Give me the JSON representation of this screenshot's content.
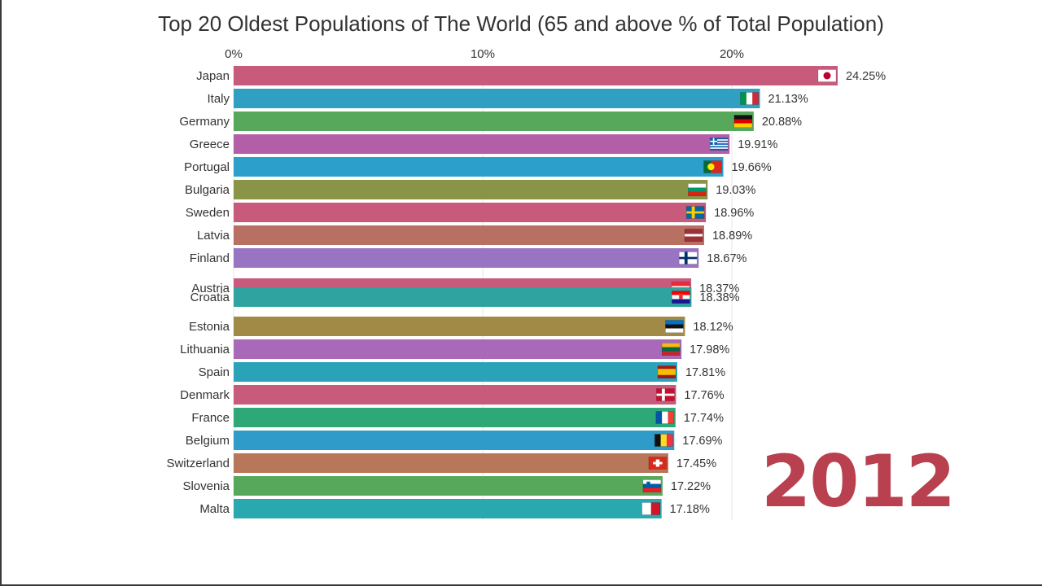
{
  "chart_data": {
    "type": "bar",
    "orientation": "horizontal",
    "title": "Top 20 Oldest Populations of The World (65 and above % of Total Population)",
    "xlim": [
      0,
      24.25
    ],
    "xticks": [
      {
        "value": 0,
        "label": "0%"
      },
      {
        "value": 10,
        "label": "10%"
      },
      {
        "value": 20,
        "label": "20%"
      }
    ],
    "grid": true,
    "year": "2012",
    "categories": [
      "Japan",
      "Italy",
      "Germany",
      "Greece",
      "Portugal",
      "Bulgaria",
      "Sweden",
      "Latvia",
      "Finland",
      "Austria",
      "Croatia",
      "Estonia",
      "Lithuania",
      "Spain",
      "Denmark",
      "France",
      "Belgium",
      "Switzerland",
      "Slovenia",
      "Malta"
    ],
    "values": [
      24.25,
      21.13,
      20.88,
      19.91,
      19.66,
      19.03,
      18.96,
      18.89,
      18.67,
      18.37,
      18.38,
      18.12,
      17.98,
      17.81,
      17.76,
      17.74,
      17.69,
      17.45,
      17.22,
      17.18
    ],
    "value_labels": [
      "24.25%",
      "21.13%",
      "20.88%",
      "19.91%",
      "19.66%",
      "19.03%",
      "18.96%",
      "18.89%",
      "18.67%",
      "18.37%",
      "18.38%",
      "18.12%",
      "17.98%",
      "17.81%",
      "17.76%",
      "17.74%",
      "17.69%",
      "17.45%",
      "17.22%",
      "17.18%"
    ],
    "bar_colors": [
      "#c85a7c",
      "#2fa0c2",
      "#58a85c",
      "#b35fa8",
      "#2d9fcb",
      "#8a9446",
      "#c85a7c",
      "#b87062",
      "#9874c2",
      "#c85a7c",
      "#2fa3a0",
      "#a08a46",
      "#a86ab8",
      "#2aa3b8",
      "#c85a7c",
      "#2fa878",
      "#2e9bc8",
      "#b8765a",
      "#58a85c",
      "#2aa8b0"
    ],
    "flag_icons": [
      "flag-japan",
      "flag-italy",
      "flag-germany",
      "flag-greece",
      "flag-portugal",
      "flag-bulgaria",
      "flag-sweden",
      "flag-latvia",
      "flag-finland",
      "flag-austria",
      "flag-croatia",
      "flag-estonia",
      "flag-lithuania",
      "flag-spain",
      "flag-denmark",
      "flag-france",
      "flag-belgium",
      "flag-switzerland",
      "flag-slovenia",
      "flag-malta"
    ]
  }
}
